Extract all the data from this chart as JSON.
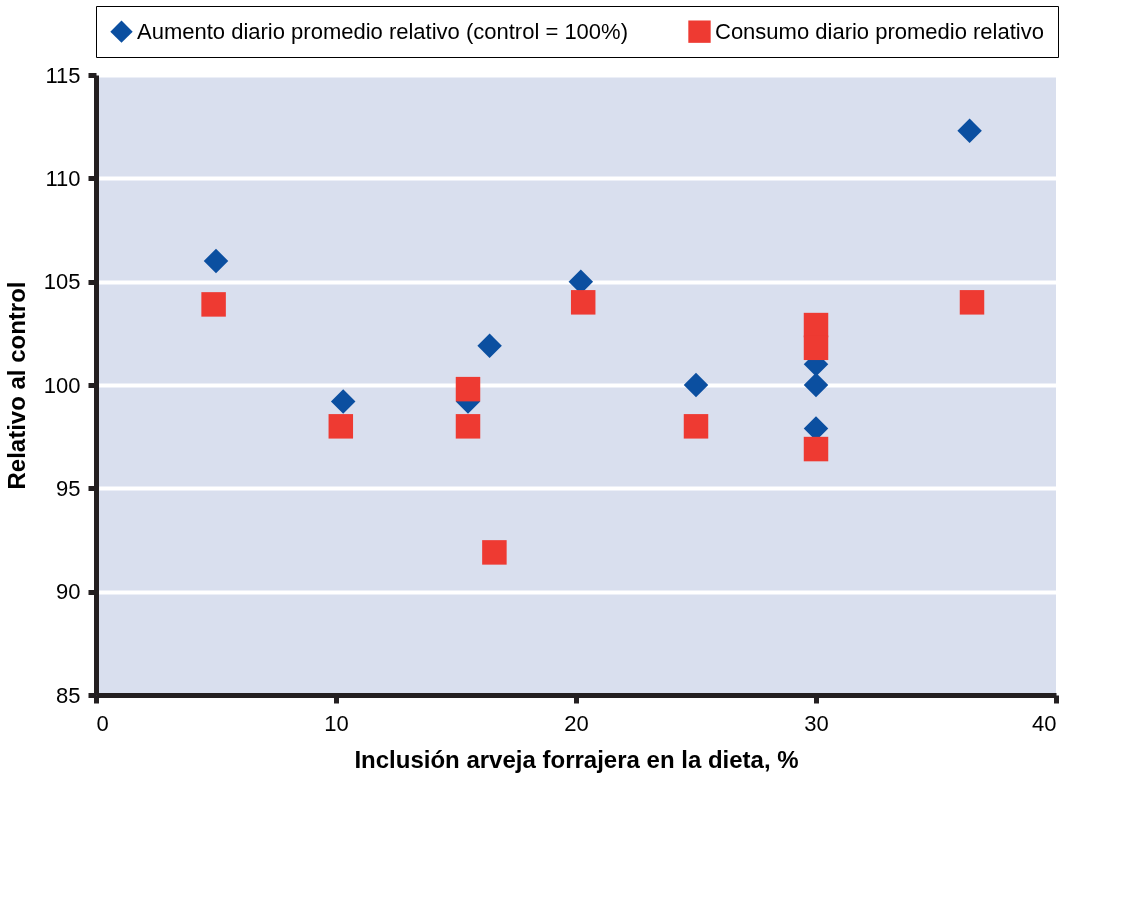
{
  "chart_data": {
    "type": "scatter",
    "xlabel": "Inclusión arveja forrajera en la dieta, %",
    "ylabel": "Relativo al control",
    "xlim": [
      0,
      40
    ],
    "xticks": [
      0,
      10,
      20,
      30,
      40
    ],
    "ylim": [
      85,
      115
    ],
    "yticks": [
      85,
      90,
      95,
      100,
      105,
      110,
      115
    ],
    "grid": "y",
    "legend": "top",
    "series": [
      {
        "name": "Aumento diario promedio relativo (control = 100%)",
        "color": "#0b4fa0",
        "marker": "diamond",
        "x": [
          5,
          10.3,
          15.5,
          16.4,
          20.2,
          25,
          30,
          30,
          30,
          36.4
        ],
        "values": [
          106,
          99.2,
          99.2,
          101.9,
          105,
          100,
          101,
          100,
          97.9,
          112.3
        ]
      },
      {
        "name": "Consumo diario promedio relativo",
        "color": "#ee3a32",
        "marker": "square",
        "x": [
          4.9,
          10.2,
          15.5,
          15.5,
          16.6,
          20.3,
          25,
          30,
          30,
          30,
          36.5
        ],
        "values": [
          103.9,
          98,
          98,
          99.8,
          91.9,
          104,
          98,
          96.9,
          102.9,
          101.8,
          104
        ]
      }
    ]
  }
}
